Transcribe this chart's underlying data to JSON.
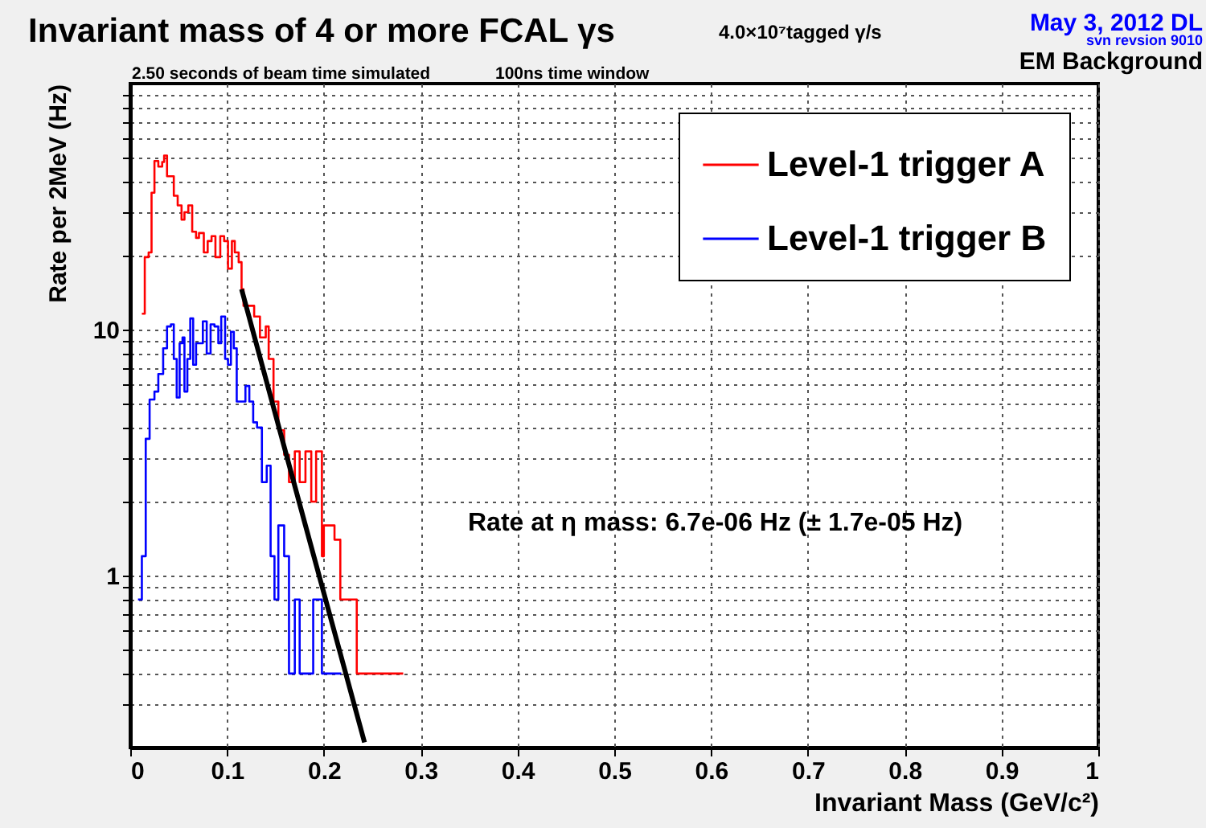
{
  "chart_data": {
    "type": "step",
    "title": "Invariant mass of 4 or more FCAL γs",
    "xlabel": "Invariant Mass (GeV/c²)",
    "ylabel": "Rate per 2MeV (Hz)",
    "annotations": [
      "4.0×10⁷tagged γ/s",
      "May  3, 2012 DL",
      "svn revsion 9010",
      "EM Background",
      "2.50 seconds of beam time simulated",
      "100ns time window",
      "Rate at η mass: 6.7e-06 Hz (± 1.7e-05 Hz)"
    ],
    "series": [
      {
        "name": "Level-1 trigger A",
        "color": "#ff0000",
        "x": [
          0.012,
          0.015,
          0.019,
          0.022,
          0.025,
          0.029,
          0.033,
          0.035,
          0.038,
          0.042,
          0.045,
          0.049,
          0.053,
          0.056,
          0.06,
          0.064,
          0.068,
          0.071,
          0.076,
          0.08,
          0.084,
          0.088,
          0.093,
          0.097,
          0.101,
          0.105,
          0.108,
          0.112,
          0.115,
          0.117,
          0.123,
          0.128,
          0.134,
          0.14,
          0.143,
          0.148,
          0.153,
          0.159,
          0.164,
          0.17,
          0.175,
          0.181,
          0.187,
          0.192,
          0.198,
          0.2,
          0.206,
          0.211,
          0.217,
          0.222,
          0.228,
          0.234,
          0.242,
          0.25,
          0.256,
          0.274,
          0.282
        ],
        "values": [
          11.6,
          19.7,
          20.6,
          36,
          48.5,
          46,
          48,
          51,
          42,
          42,
          35,
          32,
          28,
          30,
          32,
          25,
          23.6,
          24.7,
          20.6,
          22.9,
          24,
          19.7,
          24,
          22.9,
          17.7,
          22.9,
          20.6,
          18.8,
          14.6,
          12.5,
          12.5,
          11.3,
          9.3,
          10.3,
          7.6,
          5.1,
          3.9,
          3.1,
          2.4,
          3.2,
          2.4,
          3.2,
          2,
          3.2,
          1.2,
          1.6,
          1.6,
          1.4,
          0.8,
          0.8,
          0.8,
          0.4,
          0.4,
          0.4,
          0.4,
          0.4,
          0.4
        ]
      },
      {
        "name": "Level-1 trigger B",
        "color": "#0000ff",
        "x": [
          0.008,
          0.012,
          0.016,
          0.02,
          0.025,
          0.029,
          0.034,
          0.038,
          0.042,
          0.045,
          0.048,
          0.051,
          0.054,
          0.056,
          0.059,
          0.062,
          0.065,
          0.068,
          0.071,
          0.075,
          0.079,
          0.083,
          0.087,
          0.091,
          0.094,
          0.098,
          0.101,
          0.104,
          0.107,
          0.11,
          0.115,
          0.119,
          0.123,
          0.127,
          0.131,
          0.136,
          0.141,
          0.145,
          0.149,
          0.153,
          0.159,
          0.164,
          0.17,
          0.175,
          0.181,
          0.189,
          0.198,
          0.206,
          0.214,
          0.218
        ],
        "values": [
          0.8,
          1.2,
          3.6,
          5.2,
          5.6,
          6.6,
          8.4,
          10.3,
          10.5,
          7.6,
          5.3,
          8.8,
          9.3,
          5.6,
          7.6,
          11.1,
          7.2,
          8.8,
          8.8,
          10.8,
          8.0,
          10.5,
          10.3,
          8.8,
          11.3,
          7.6,
          7.2,
          9.8,
          8.4,
          5.1,
          5.1,
          5.9,
          5.1,
          4.2,
          4.0,
          2.4,
          2.8,
          1.2,
          0.8,
          1.6,
          1.2,
          0.4,
          0.8,
          0.4,
          0.4,
          0.8,
          0.4,
          0.4,
          0.4,
          0.4
        ]
      },
      {
        "type": "line",
        "color": "#000000",
        "x": [
          0.115,
          0.181,
          0.242
        ],
        "values": [
          14.6,
          1.6,
          0.21
        ]
      }
    ],
    "xlim": [
      0,
      1
    ],
    "xticks": [
      0,
      0.1,
      0.2,
      0.3,
      0.4,
      0.5,
      0.6,
      0.7,
      0.8,
      0.9,
      1
    ],
    "ylim": [
      0.2,
      100
    ],
    "log": true,
    "yticks": [
      {
        "value": 0.3,
        "label": null
      },
      {
        "value": 0.4,
        "label": null
      },
      {
        "value": 0.5,
        "label": null
      },
      {
        "value": 0.6,
        "label": null
      },
      {
        "value": 0.7,
        "label": null
      },
      {
        "value": 0.8,
        "label": null
      },
      {
        "value": 0.9,
        "label": null
      },
      1,
      {
        "value": 2,
        "label": null
      },
      {
        "value": 3,
        "label": null
      },
      {
        "value": 4,
        "label": null
      },
      {
        "value": 5,
        "label": null
      },
      {
        "value": 6,
        "label": null
      },
      {
        "value": 7,
        "label": null
      },
      {
        "value": 8,
        "label": null
      },
      {
        "value": 9,
        "label": null
      },
      10,
      {
        "value": 20,
        "label": null
      },
      {
        "value": 30,
        "label": null
      },
      {
        "value": 40,
        "label": null
      },
      {
        "value": 50,
        "label": null
      },
      {
        "value": 60,
        "label": null
      },
      {
        "value": 70,
        "label": null
      },
      {
        "value": 80,
        "label": null
      },
      {
        "value": 90,
        "label": null
      }
    ],
    "grid": true,
    "legend": "top right"
  }
}
